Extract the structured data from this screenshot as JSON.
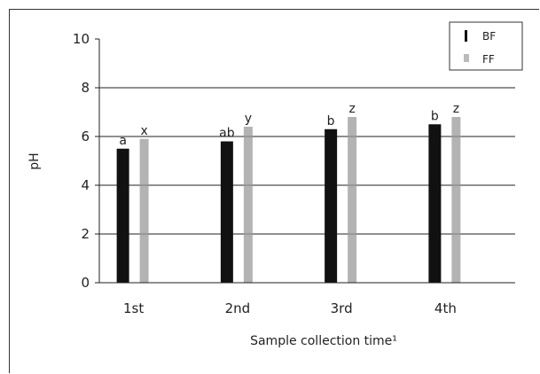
{
  "chart_data": {
    "type": "bar",
    "categories": [
      "1st",
      "2nd",
      "3rd",
      "4th"
    ],
    "series": [
      {
        "name": "BF",
        "values": [
          5.5,
          5.8,
          6.3,
          6.5
        ],
        "labels": [
          "a",
          "ab",
          "b",
          "b"
        ],
        "color": "#111111"
      },
      {
        "name": "FF",
        "values": [
          5.9,
          6.4,
          6.8,
          6.8
        ],
        "labels": [
          "x",
          "y",
          "z",
          "z"
        ],
        "color": "#9a9a9a"
      }
    ],
    "title": "",
    "xlabel": "Sample collection time¹",
    "ylabel": "pH",
    "ylim": [
      0,
      10
    ],
    "yticks": [
      0,
      2,
      4,
      6,
      8,
      10
    ],
    "grid": true,
    "legend": "top-right"
  }
}
